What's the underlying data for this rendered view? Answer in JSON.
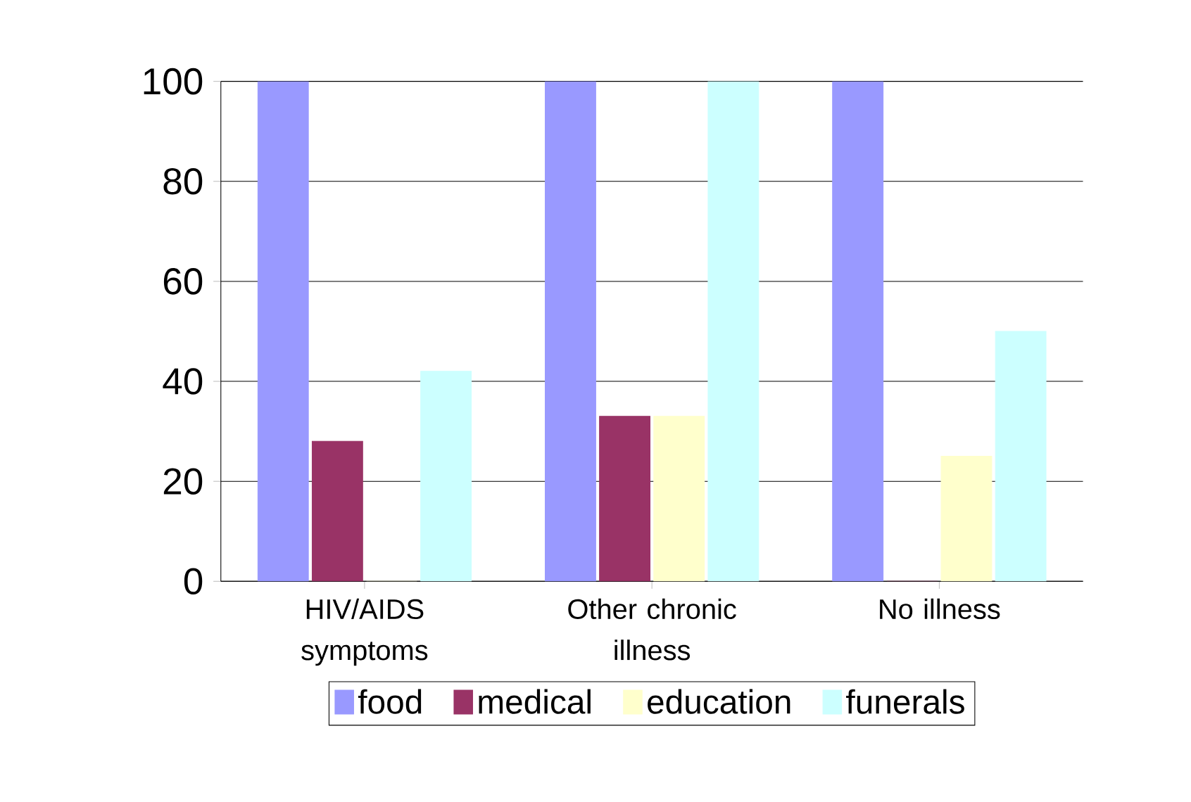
{
  "chart_data": {
    "type": "bar",
    "categories": [
      "HIV/AIDS symptoms",
      "Other chronic illness",
      "No illness"
    ],
    "series": [
      {
        "name": "food",
        "color": "#9999ff",
        "values": [
          100,
          100,
          100
        ]
      },
      {
        "name": "medical",
        "color": "#993366",
        "values": [
          28,
          33,
          0
        ]
      },
      {
        "name": "education",
        "color": "#ffffcc",
        "values": [
          0,
          33,
          25
        ]
      },
      {
        "name": "funerals",
        "color": "#ccffff",
        "values": [
          42,
          100,
          50
        ]
      }
    ],
    "ylim": [
      0,
      100
    ],
    "yticks": [
      0,
      20,
      40,
      60,
      80,
      100
    ],
    "grid": "y",
    "legend": "bottom"
  }
}
